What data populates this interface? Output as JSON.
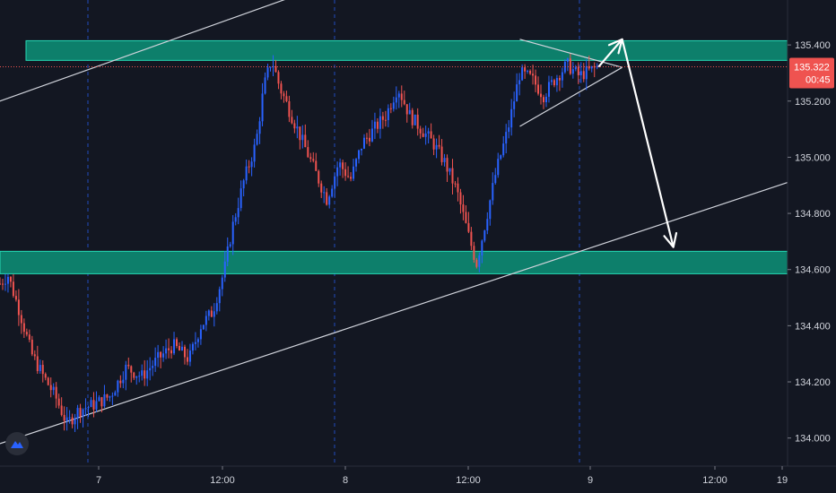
{
  "chart_data": {
    "type": "candlestick",
    "instrument_price_current": "135.322",
    "countdown": "00:45",
    "y_ticks": [
      {
        "value": 135.4,
        "label": "135.400"
      },
      {
        "value": 135.2,
        "label": "135.200"
      },
      {
        "value": 135.0,
        "label": "135.000"
      },
      {
        "value": 134.8,
        "label": "134.800"
      },
      {
        "value": 134.6,
        "label": "134.600"
      },
      {
        "value": 134.4,
        "label": "134.400"
      },
      {
        "value": 134.2,
        "label": "134.200"
      },
      {
        "value": 134.0,
        "label": "134.000"
      }
    ],
    "x_ticks": [
      {
        "label": "7",
        "day_separator": true
      },
      {
        "label": "12:00",
        "day_separator": false
      },
      {
        "label": "8",
        "day_separator": true
      },
      {
        "label": "12:00",
        "day_separator": false
      },
      {
        "label": "9",
        "day_separator": true
      },
      {
        "label": "12:00",
        "day_separator": false
      },
      {
        "label": "19",
        "day_separator": false
      }
    ],
    "ylim": [
      133.9,
      135.56
    ],
    "resistance_zone": [
      135.345,
      135.415
    ],
    "support_zone": [
      134.585,
      134.665
    ],
    "price_path": [
      [
        0,
        134.55
      ],
      [
        0.01,
        134.58
      ],
      [
        0.025,
        134.45
      ],
      [
        0.04,
        134.3
      ],
      [
        0.055,
        134.22
      ],
      [
        0.07,
        134.15
      ],
      [
        0.085,
        134.05
      ],
      [
        0.1,
        134.1
      ],
      [
        0.12,
        134.12
      ],
      [
        0.14,
        134.15
      ],
      [
        0.16,
        134.25
      ],
      [
        0.18,
        134.22
      ],
      [
        0.2,
        134.28
      ],
      [
        0.22,
        134.33
      ],
      [
        0.24,
        134.28
      ],
      [
        0.255,
        134.4
      ],
      [
        0.27,
        134.45
      ],
      [
        0.285,
        134.6
      ],
      [
        0.295,
        134.75
      ],
      [
        0.31,
        134.92
      ],
      [
        0.325,
        135.05
      ],
      [
        0.335,
        135.25
      ],
      [
        0.345,
        135.35
      ],
      [
        0.355,
        135.25
      ],
      [
        0.37,
        135.15
      ],
      [
        0.385,
        135.05
      ],
      [
        0.4,
        134.95
      ],
      [
        0.415,
        134.85
      ],
      [
        0.43,
        134.98
      ],
      [
        0.445,
        134.92
      ],
      [
        0.46,
        135.05
      ],
      [
        0.475,
        135.1
      ],
      [
        0.49,
        135.15
      ],
      [
        0.505,
        135.25
      ],
      [
        0.52,
        135.15
      ],
      [
        0.535,
        135.1
      ],
      [
        0.55,
        135.05
      ],
      [
        0.565,
        134.98
      ],
      [
        0.58,
        134.88
      ],
      [
        0.595,
        134.72
      ],
      [
        0.605,
        134.62
      ],
      [
        0.615,
        134.75
      ],
      [
        0.63,
        134.95
      ],
      [
        0.645,
        135.1
      ],
      [
        0.66,
        135.3
      ],
      [
        0.675,
        135.28
      ],
      [
        0.69,
        135.22
      ],
      [
        0.705,
        135.28
      ],
      [
        0.72,
        135.33
      ],
      [
        0.735,
        135.29
      ],
      [
        0.75,
        135.31
      ],
      [
        0.76,
        135.322
      ]
    ],
    "channel_upper": [
      [
        -0.02,
        135.18
      ],
      [
        0.55,
        135.75
      ]
    ],
    "channel_lower": [
      [
        0.0,
        133.98
      ],
      [
        1.0,
        134.91
      ]
    ],
    "triangle": {
      "top_left": [
        0.66,
        135.42
      ],
      "apex": [
        0.79,
        135.32
      ],
      "bottom_left": [
        0.66,
        135.11
      ]
    },
    "projection": [
      [
        0.76,
        135.322
      ],
      [
        0.79,
        135.42
      ],
      [
        0.855,
        134.68
      ]
    ]
  },
  "colors": {
    "background": "#131722",
    "grid": "#2a2e39",
    "bull": "#2962ff",
    "bear": "#ef5350",
    "zone_fill": "#0d7f6b",
    "zone_border": "#26d9b5",
    "line": "#d1d4dc",
    "price_badge": "#ef5350",
    "separator": "#2962ff"
  },
  "logo_icon": "tradingview-logo-icon"
}
